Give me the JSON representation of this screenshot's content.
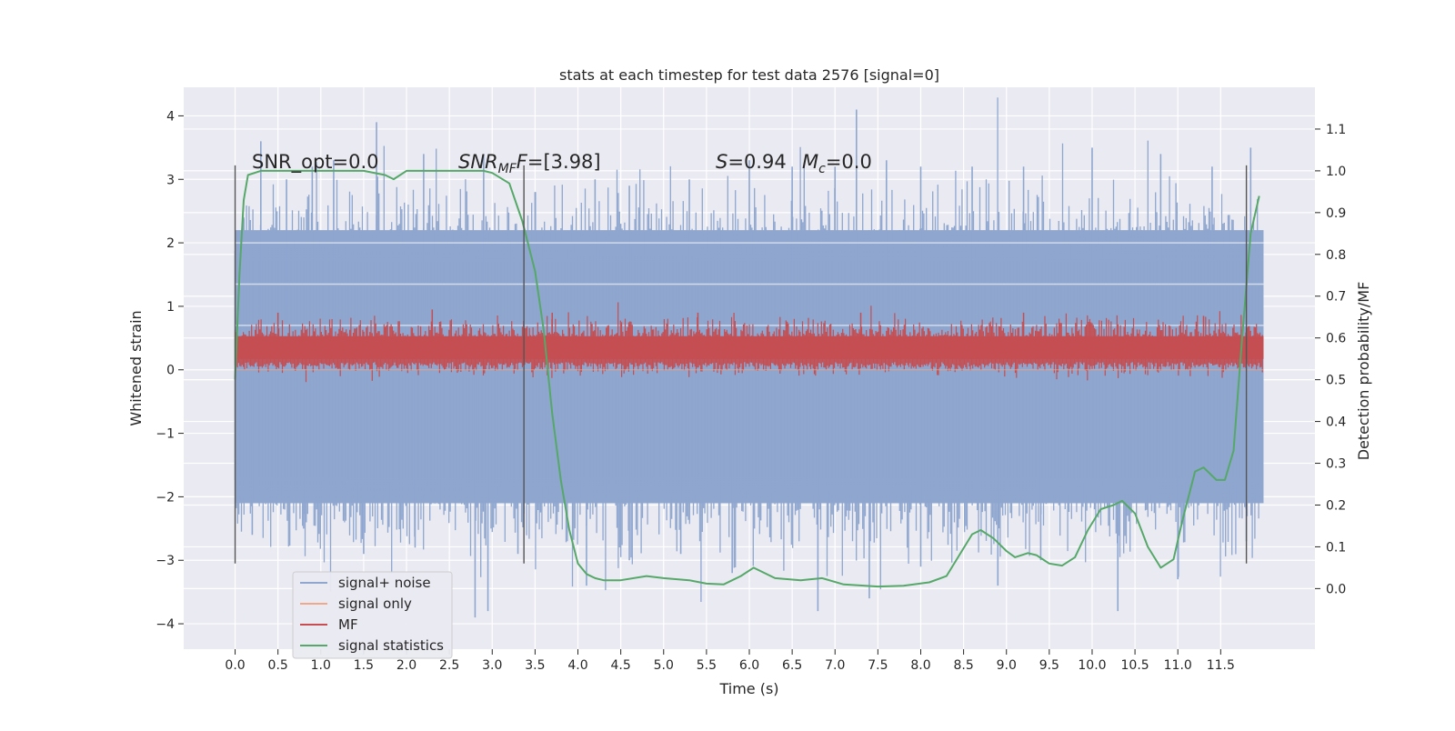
{
  "chart_data": {
    "type": "line",
    "title": "stats at each timestep for test data 2576 [signal=0]",
    "xlabel": "Time (s)",
    "ylabel_left": "Whitened strain",
    "ylabel_right": "Detection probability/MF",
    "xlim": [
      -0.6,
      12.6
    ],
    "ylim_left": [
      -4.4,
      4.45
    ],
    "ylim_right": [
      -0.145,
      1.2
    ],
    "xticks": [
      0.0,
      0.5,
      1.0,
      1.5,
      2.0,
      2.5,
      3.0,
      3.5,
      4.0,
      4.5,
      5.0,
      5.5,
      6.0,
      6.5,
      7.0,
      7.5,
      8.0,
      8.5,
      9.0,
      9.5,
      10.0,
      10.5,
      11.0,
      11.5
    ],
    "xtick_labels": [
      "0.0",
      "0.5",
      "1.0",
      "1.5",
      "2.0",
      "2.5",
      "3.0",
      "3.5",
      "4.0",
      "4.5",
      "5.0",
      "5.5",
      "6.0",
      "6.5",
      "7.0",
      "7.5",
      "8.0",
      "8.5",
      "9.0",
      "9.5",
      "10.0",
      "10.5",
      "11.0",
      "11.5"
    ],
    "yticks_left": [
      -4,
      -3,
      -2,
      -1,
      0,
      1,
      2,
      3,
      4
    ],
    "yticks_left_labels": [
      "−4",
      "−3",
      "−2",
      "−1",
      "0",
      "1",
      "2",
      "3",
      "4"
    ],
    "yticks_right": [
      0.0,
      0.1,
      0.2,
      0.3,
      0.4,
      0.5,
      0.6,
      0.7,
      0.8,
      0.9,
      1.0,
      1.1
    ],
    "yticks_right_labels": [
      "0.0",
      "0.1",
      "0.2",
      "0.3",
      "0.4",
      "0.5",
      "0.6",
      "0.7",
      "0.8",
      "0.9",
      "1.0",
      "1.1"
    ],
    "grid": true,
    "legend_position": "lower-left",
    "legend": [
      {
        "label": "signal+ noise",
        "color": "#8fa6cf"
      },
      {
        "label": "signal only",
        "color": "#f0a88a"
      },
      {
        "label": "MF",
        "color": "#c44e52"
      },
      {
        "label": "signal statistics",
        "color": "#55a868"
      }
    ],
    "annotations": {
      "snr_opt": "SNR_opt=0.0",
      "snr_mf_main": "SNR",
      "snr_mf_sub": "MF",
      "snr_mf_rest": "=[3.98]",
      "s_main": "S",
      "s_rest": "=0.94",
      "mc_main": "M",
      "mc_sub": "c",
      "mc_rest": "=0.0"
    },
    "vertical_markers_x": [
      0.0,
      3.37,
      11.8
    ],
    "vertical_markers_range": [
      -3.05,
      3.22
    ],
    "series": [
      {
        "name": "signal+ noise",
        "color": "#8fa6cf",
        "x_range": [
          0.0,
          12.0
        ],
        "dense_band": [
          -2.1,
          2.2
        ],
        "peak_samples": [
          [
            0.1,
            2.4
          ],
          [
            0.3,
            3.6
          ],
          [
            0.6,
            3.0
          ],
          [
            0.9,
            3.2
          ],
          [
            1.15,
            3.3
          ],
          [
            1.65,
            3.9
          ],
          [
            2.2,
            3.4
          ],
          [
            2.9,
            3.4
          ],
          [
            3.5,
            2.8
          ],
          [
            4.2,
            3.0
          ],
          [
            4.6,
            2.9
          ],
          [
            5.3,
            3.0
          ],
          [
            6.0,
            3.3
          ],
          [
            6.5,
            3.2
          ],
          [
            7.0,
            3.2
          ],
          [
            7.25,
            4.1
          ],
          [
            7.6,
            3.3
          ],
          [
            8.0,
            3.2
          ],
          [
            8.6,
            3.2
          ],
          [
            9.2,
            3.2
          ],
          [
            10.0,
            3.5
          ],
          [
            10.8,
            3.4
          ],
          [
            11.4,
            3.2
          ],
          [
            11.85,
            3.5
          ],
          [
            0.2,
            -2.6
          ],
          [
            0.8,
            -2.5
          ],
          [
            1.5,
            -2.9
          ],
          [
            2.1,
            -2.8
          ],
          [
            2.8,
            -3.9
          ],
          [
            2.95,
            -3.8
          ],
          [
            3.3,
            -2.9
          ],
          [
            4.1,
            -3.4
          ],
          [
            4.6,
            -3.0
          ],
          [
            5.2,
            -2.9
          ],
          [
            5.8,
            -3.2
          ],
          [
            6.8,
            -3.8
          ],
          [
            7.4,
            -3.6
          ],
          [
            8.0,
            -3.1
          ],
          [
            8.9,
            -3.4
          ],
          [
            9.4,
            -3.0
          ],
          [
            10.3,
            -3.8
          ],
          [
            11.0,
            -3.3
          ],
          [
            11.8,
            -2.7
          ]
        ]
      },
      {
        "name": "signal only",
        "color": "#f0a88a",
        "x": [
          0.0,
          12.0
        ],
        "y": [
          0.0,
          0.0
        ]
      },
      {
        "name": "MF",
        "color": "#c44e52",
        "x_range": [
          0.0,
          12.0
        ],
        "band": [
          0.05,
          0.65
        ],
        "peak_samples": [
          [
            0.5,
            0.9
          ],
          [
            2.3,
            0.95
          ],
          [
            3.7,
            0.9
          ],
          [
            5.4,
            0.9
          ],
          [
            7.3,
            0.9
          ],
          [
            9.2,
            0.9
          ],
          [
            11.3,
            0.85
          ]
        ]
      },
      {
        "name": "signal statistics",
        "color": "#55a868",
        "axis": "right",
        "x": [
          0.0,
          0.05,
          0.1,
          0.15,
          0.3,
          0.6,
          1.0,
          1.5,
          1.75,
          1.85,
          2.0,
          2.5,
          2.9,
          3.0,
          3.2,
          3.35,
          3.5,
          3.6,
          3.7,
          3.8,
          3.9,
          4.0,
          4.1,
          4.2,
          4.3,
          4.5,
          4.8,
          5.0,
          5.3,
          5.5,
          5.7,
          5.9,
          6.05,
          6.3,
          6.6,
          6.85,
          7.1,
          7.5,
          7.8,
          8.1,
          8.3,
          8.45,
          8.6,
          8.7,
          8.85,
          9.0,
          9.1,
          9.25,
          9.35,
          9.5,
          9.65,
          9.8,
          9.95,
          10.1,
          10.25,
          10.35,
          10.5,
          10.65,
          10.8,
          10.95,
          11.05,
          11.2,
          11.3,
          11.45,
          11.55,
          11.65,
          11.75,
          11.85,
          11.95
        ],
        "y": [
          0.5,
          0.75,
          0.93,
          0.99,
          1.0,
          1.0,
          1.0,
          1.0,
          0.99,
          0.98,
          1.0,
          1.0,
          1.0,
          0.995,
          0.97,
          0.88,
          0.76,
          0.62,
          0.42,
          0.26,
          0.14,
          0.06,
          0.035,
          0.025,
          0.02,
          0.02,
          0.03,
          0.025,
          0.02,
          0.012,
          0.01,
          0.03,
          0.05,
          0.025,
          0.02,
          0.025,
          0.01,
          0.005,
          0.007,
          0.015,
          0.03,
          0.08,
          0.13,
          0.14,
          0.12,
          0.09,
          0.075,
          0.085,
          0.08,
          0.06,
          0.055,
          0.075,
          0.14,
          0.19,
          0.2,
          0.21,
          0.18,
          0.1,
          0.05,
          0.07,
          0.16,
          0.28,
          0.29,
          0.26,
          0.26,
          0.33,
          0.6,
          0.85,
          0.94
        ]
      }
    ]
  }
}
